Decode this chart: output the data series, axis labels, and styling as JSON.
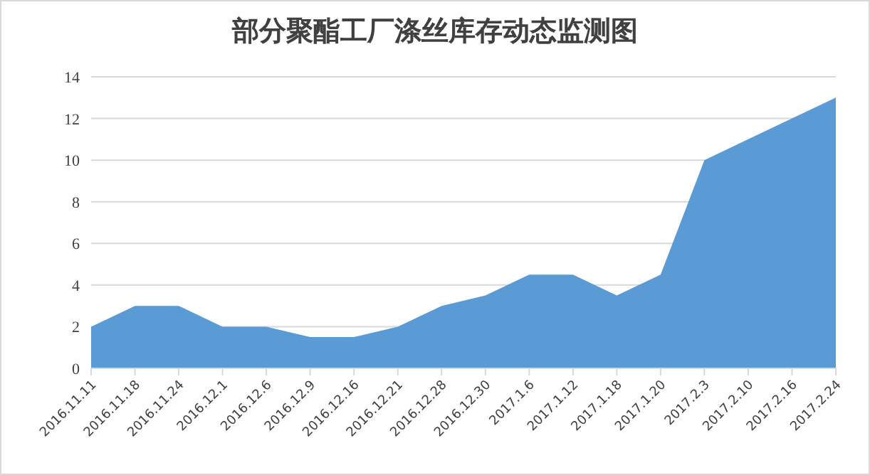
{
  "chart_data": {
    "type": "area",
    "title": "部分聚酯工厂涤丝库存动态监测图",
    "categories": [
      "2016.11.11",
      "2016.11.18",
      "2016.11.24",
      "2016.12.1",
      "2016.12.6",
      "2016.12.9",
      "2016.12.16",
      "2016.12.21",
      "2016.12.28",
      "2016.12.30",
      "2017.1.6",
      "2017.1.12",
      "2017.1.18",
      "2017.1.20",
      "2017.2.3",
      "2017.2.10",
      "2017.2.16",
      "2017.2.24"
    ],
    "series": [
      {
        "color": "#5b9bd5",
        "values": [
          2,
          3,
          3,
          2,
          2,
          1.5,
          1.5,
          2,
          3,
          3.5,
          4.5,
          4.5,
          3.5,
          4.5,
          10,
          11,
          12,
          13
        ]
      }
    ],
    "ylim": [
      0,
      14
    ],
    "yticks": [
      0,
      2,
      4,
      6,
      8,
      10,
      12,
      14
    ],
    "grid": "y"
  }
}
